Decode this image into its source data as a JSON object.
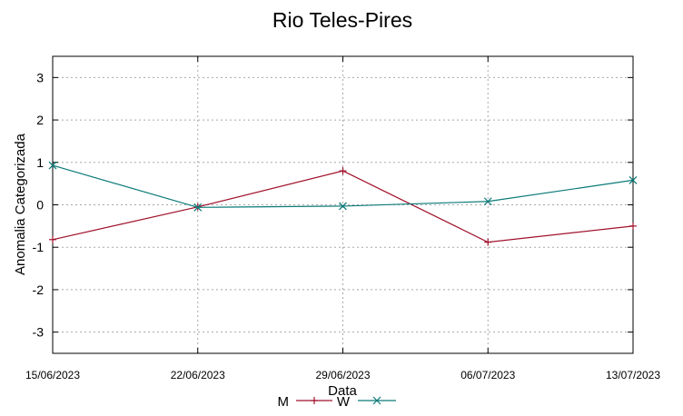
{
  "chart_data": {
    "type": "line",
    "title": "Rio Teles-Pires",
    "xlabel": "Data",
    "ylabel": "Anomalia Categorizada",
    "categories": [
      "15/06/2023",
      "22/06/2023",
      "29/06/2023",
      "06/07/2023",
      "13/07/2023"
    ],
    "ylim": [
      -3.5,
      3.5
    ],
    "yticks": [
      -3,
      -2,
      -1,
      0,
      1,
      2,
      3
    ],
    "grid": true,
    "legend_position": "bottom",
    "series": [
      {
        "name": "M",
        "color": "#a0102a",
        "marker": "plus",
        "values": [
          -0.82,
          -0.05,
          0.8,
          -0.88,
          -0.5
        ]
      },
      {
        "name": "W",
        "color": "#0a7a78",
        "marker": "cross",
        "values": [
          0.93,
          -0.06,
          -0.03,
          0.08,
          0.58
        ]
      }
    ]
  }
}
